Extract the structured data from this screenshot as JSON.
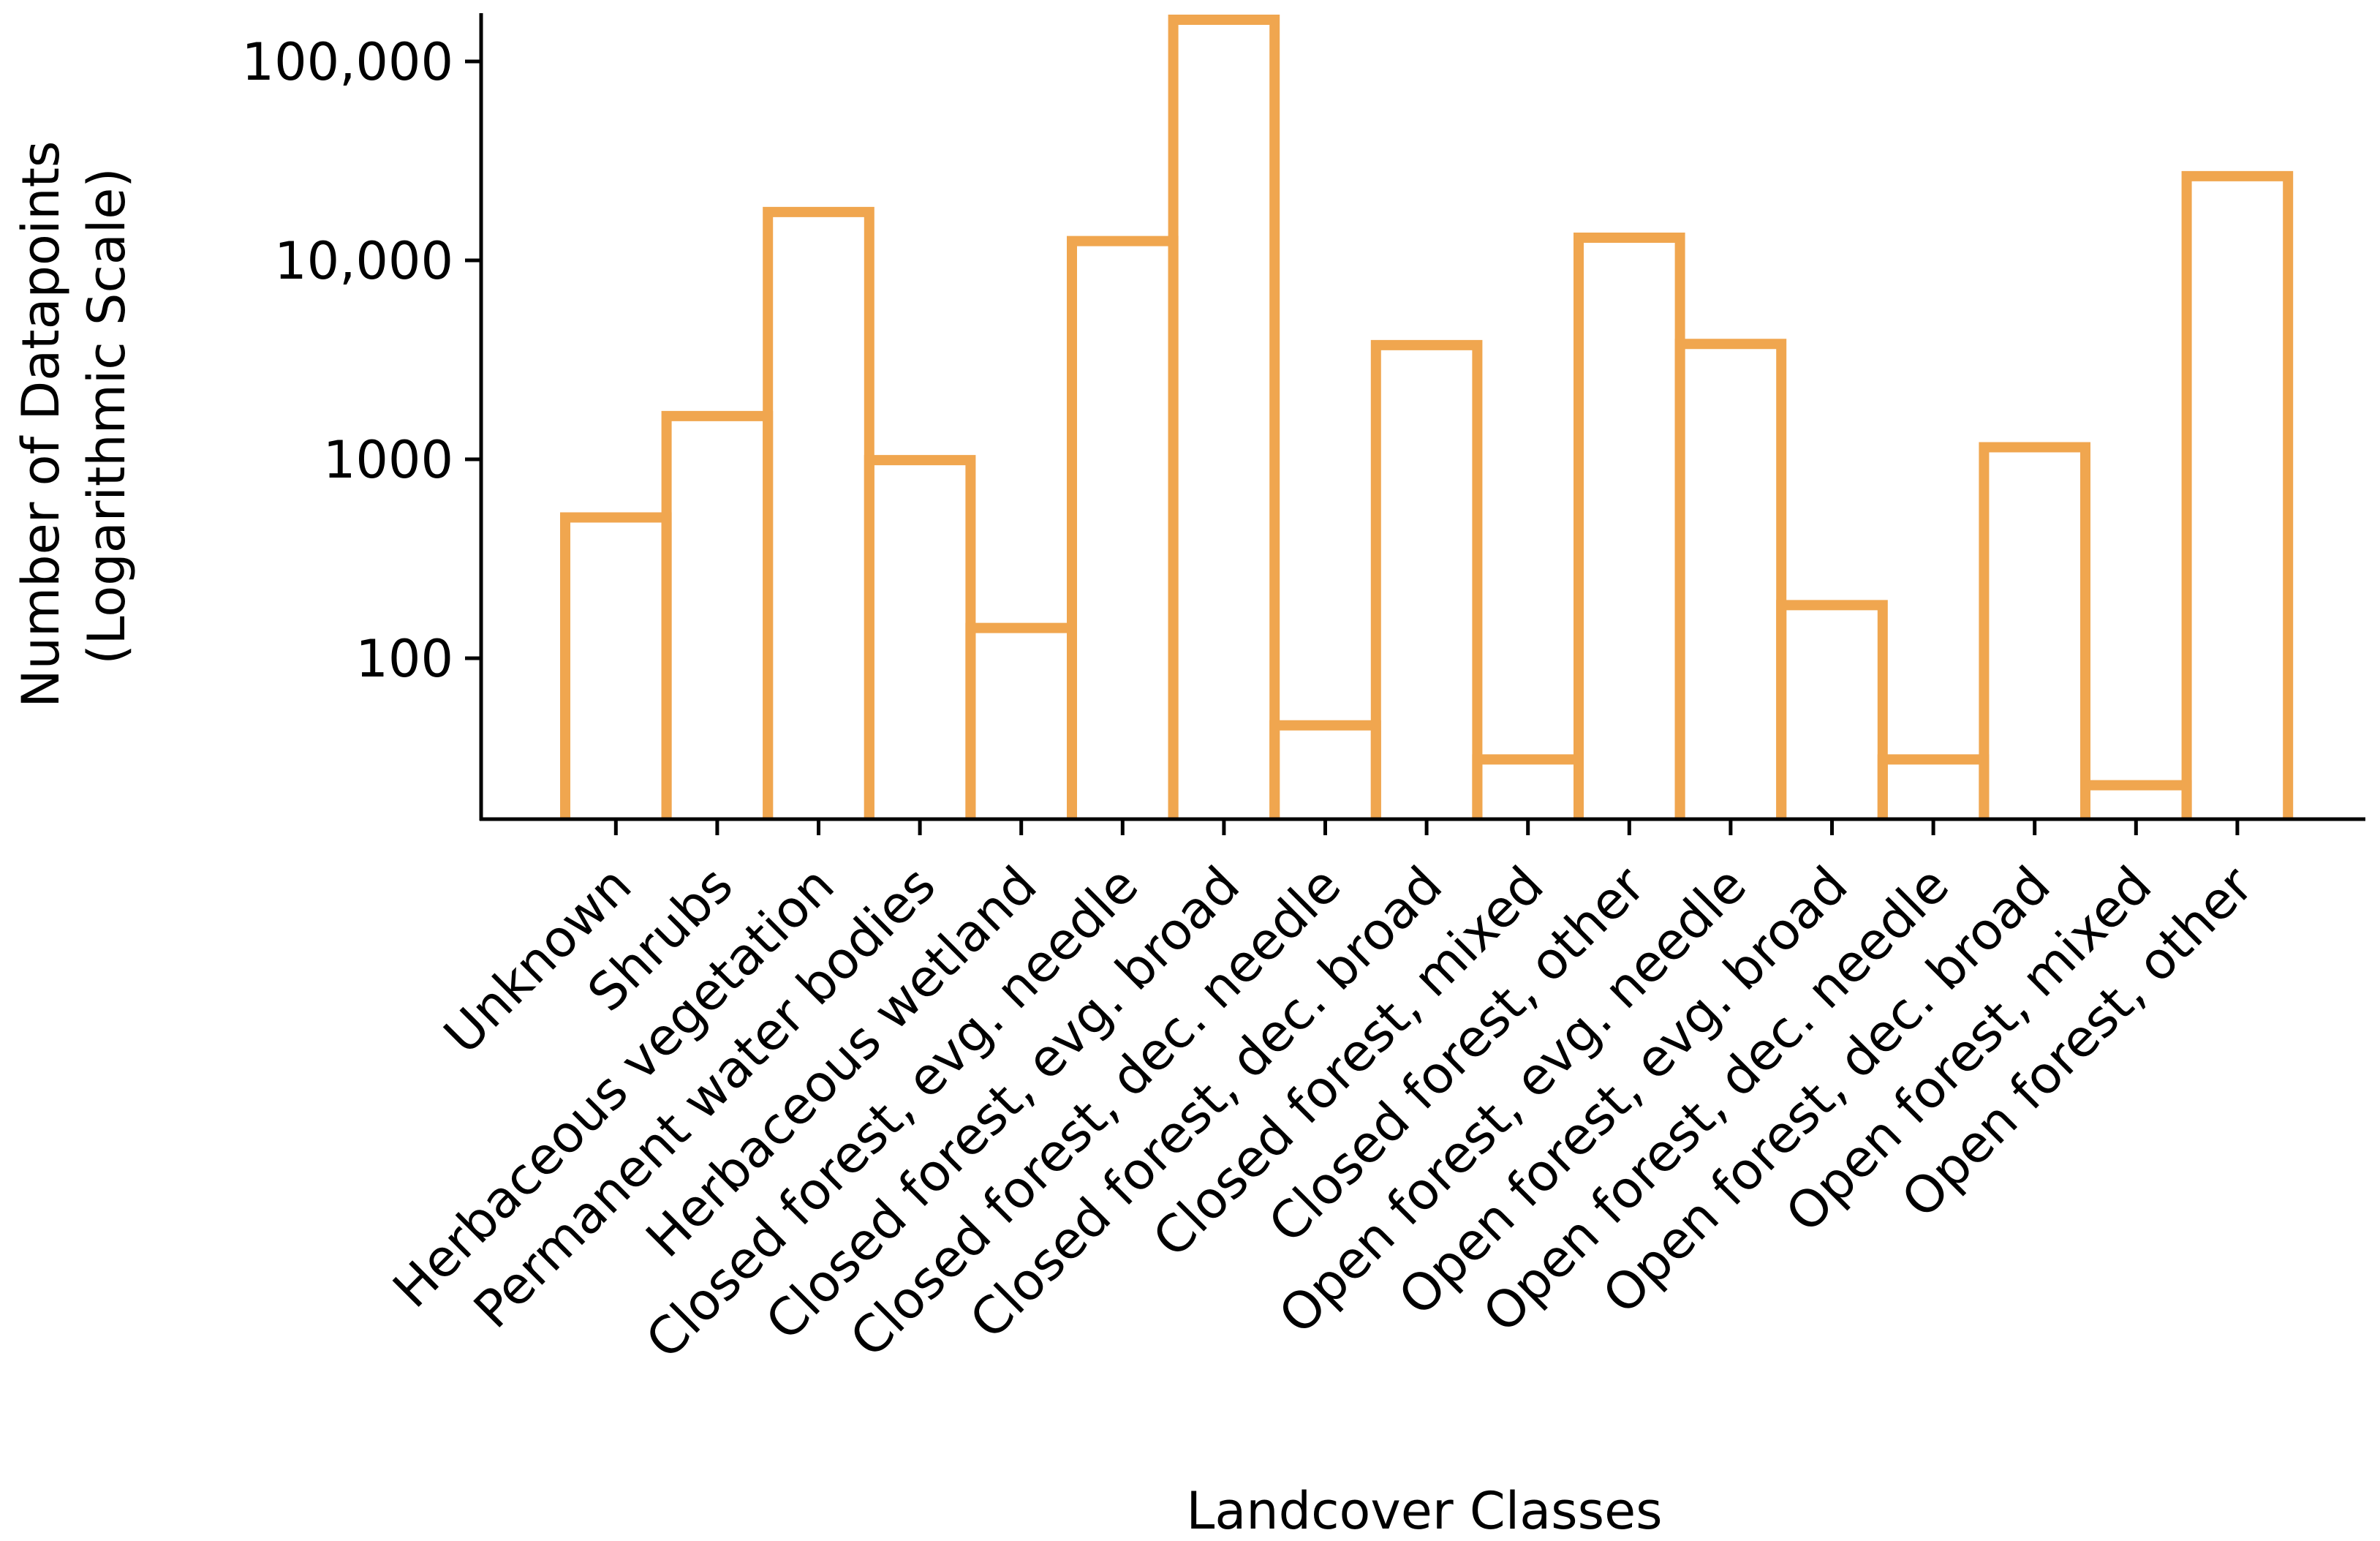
{
  "chart_data": {
    "type": "bar",
    "scale": "log",
    "title": "",
    "xlabel": "Landcover Classes",
    "ylabel_lines": [
      "Number of Datapoints",
      "(Logarithmic Scale)"
    ],
    "categories": [
      "Unknown",
      "Shrubs",
      "Herbaceous vegetation",
      "Permanent water bodies",
      "Herbaceous wetland",
      "Closed forest, evg. needle",
      "Closed forest, evg. broad",
      "Closed forest, dec. needle",
      "Closed forest, dec. broad",
      "Closed forest, mixed",
      "Closed forest, other",
      "Open forest, evg. needle",
      "Open forest, evg. broad",
      "Open forest, dec. needle",
      "Open forest, dec. broad",
      "Open forest, mixed",
      "Open forest, other"
    ],
    "values": [
      510,
      1650,
      17500,
      990,
      142,
      12500,
      162000,
      46,
      3750,
      31,
      13000,
      3800,
      185,
      31,
      1150,
      23,
      26500
    ],
    "yticks": [
      100,
      1000,
      10000,
      100000
    ],
    "ytick_labels": [
      "100",
      "1000",
      "10,000",
      "100,000"
    ],
    "ylim": [
      15,
      180000
    ],
    "grid": false,
    "bar_style": "outline",
    "color": "#F0A64F"
  }
}
